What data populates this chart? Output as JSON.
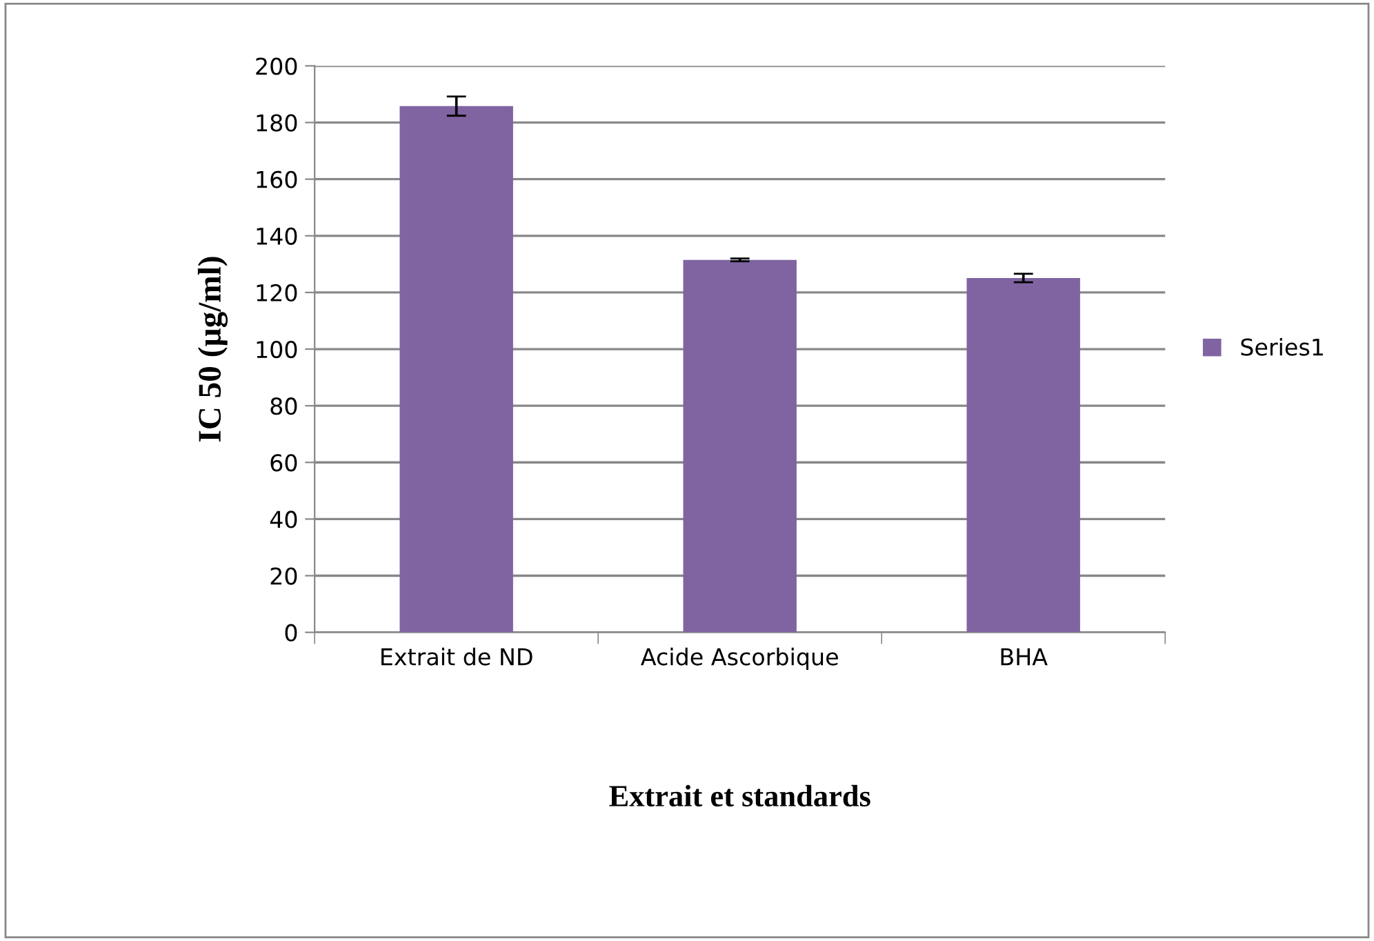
{
  "chart_data": {
    "type": "bar",
    "xlabel": "Extrait et standards",
    "ylabel": "IC 50 (µg/ml)",
    "categories": [
      "Extrait de ND",
      "Acide Ascorbique",
      "BHA"
    ],
    "series": [
      {
        "name": "Series1",
        "color": "#8064a2",
        "values": [
          185.8,
          131.5,
          125.1
        ],
        "errors": [
          3.4,
          0.5,
          1.5
        ]
      }
    ],
    "ylim": [
      0,
      200
    ],
    "yticks": [
      0,
      20,
      40,
      60,
      80,
      100,
      120,
      140,
      160,
      180,
      200
    ],
    "grid": "y",
    "legend": "right"
  }
}
